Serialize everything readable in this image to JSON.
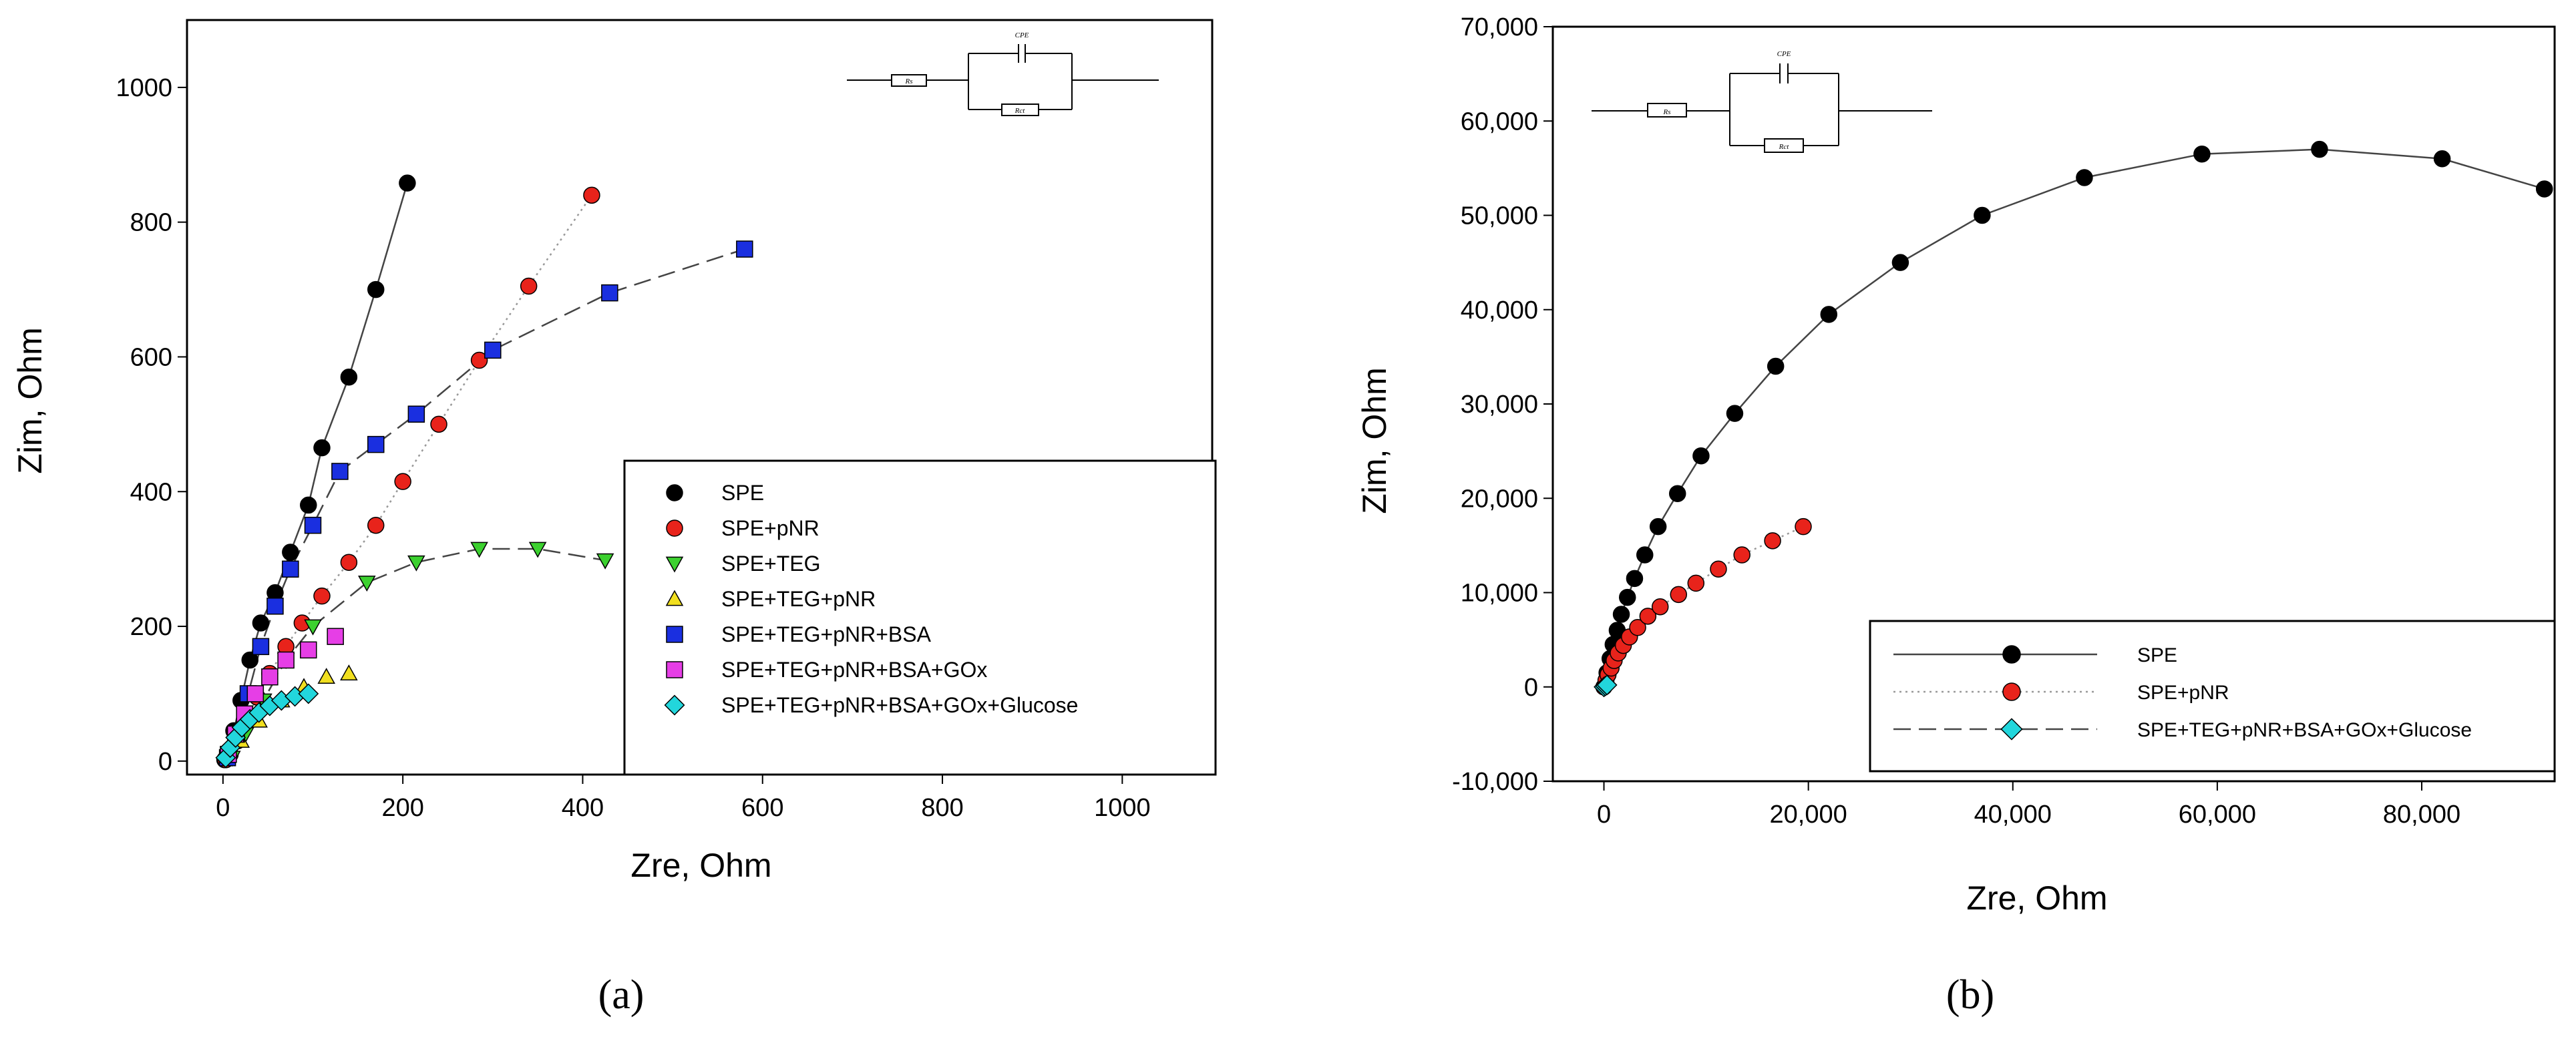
{
  "chart_data": [
    {
      "type": "scatter",
      "panel_label": "(a)",
      "xlabel": "Zre, Ohm",
      "ylabel": "Zim, Ohm",
      "xlim": [
        -40,
        1100
      ],
      "ylim": [
        -20,
        1100
      ],
      "xticks": [
        0,
        200,
        400,
        600,
        800,
        1000
      ],
      "yticks": [
        0,
        200,
        400,
        600,
        800,
        1000
      ],
      "inset_circuit": {
        "cpe_label": "CPE",
        "r1_label": "Rs",
        "r2_label": "Rct"
      },
      "series": [
        {
          "name": "SPE",
          "color": "#000000",
          "marker": "circle",
          "line": "solid",
          "x": [
            2,
            6,
            12,
            20,
            30,
            42,
            58,
            75,
            95,
            110,
            140,
            170,
            205
          ],
          "y": [
            2,
            15,
            45,
            90,
            150,
            205,
            250,
            310,
            380,
            465,
            570,
            700,
            858
          ]
        },
        {
          "name": "SPE+pNR",
          "color": "#e8231b",
          "marker": "circle",
          "line": "dotted",
          "x": [
            3,
            8,
            16,
            26,
            38,
            52,
            70,
            88,
            110,
            140,
            170,
            200,
            240,
            285,
            340,
            410
          ],
          "y": [
            2,
            10,
            30,
            60,
            95,
            130,
            170,
            205,
            245,
            295,
            350,
            415,
            500,
            595,
            705,
            840
          ]
        },
        {
          "name": "SPE+TEG",
          "color": "#3cd12f",
          "marker": "triangle-down",
          "line": "dashed",
          "x": [
            10,
            25,
            45,
            70,
            100,
            160,
            215,
            285,
            350,
            425
          ],
          "y": [
            5,
            40,
            90,
            150,
            200,
            265,
            295,
            315,
            315,
            298
          ]
        },
        {
          "name": "SPE+TEG+pNR",
          "color": "#f1df1f",
          "marker": "triangle-up",
          "line": "none",
          "x": [
            20,
            40,
            65,
            90,
            115,
            140
          ],
          "y": [
            30,
            60,
            90,
            110,
            125,
            130
          ]
        },
        {
          "name": "SPE+TEG+pNR+BSA",
          "color": "#1a2fe0",
          "marker": "square",
          "line": "dashed",
          "x": [
            5,
            15,
            28,
            42,
            58,
            75,
            100,
            130,
            170,
            215,
            300,
            430,
            580
          ],
          "y": [
            5,
            40,
            100,
            170,
            230,
            285,
            350,
            430,
            470,
            515,
            610,
            695,
            760
          ]
        },
        {
          "name": "SPE+TEG+pNR+BSA+GOx",
          "color": "#e63ee6",
          "marker": "square",
          "line": "none",
          "x": [
            6,
            14,
            24,
            36,
            52,
            70,
            95,
            125
          ],
          "y": [
            10,
            40,
            70,
            100,
            125,
            150,
            165,
            185
          ]
        },
        {
          "name": "SPE+TEG+pNR+BSA+GOx+Glucose",
          "color": "#22d6dc",
          "marker": "diamond",
          "line": "none",
          "x": [
            3,
            8,
            14,
            21,
            30,
            40,
            52,
            65,
            80,
            95
          ],
          "y": [
            5,
            20,
            35,
            50,
            62,
            72,
            82,
            90,
            96,
            100
          ]
        }
      ]
    },
    {
      "type": "scatter",
      "panel_label": "(b)",
      "xlabel": "Zre,  Ohm",
      "ylabel": "Zim,  Ohm",
      "xlim": [
        -5000,
        93000
      ],
      "ylim": [
        -10000,
        70000
      ],
      "xticks": [
        0,
        20000,
        40000,
        60000,
        80000
      ],
      "xtick_labels": [
        "0",
        "20,000",
        "40,000",
        "60,000",
        "80,000"
      ],
      "yticks": [
        -10000,
        0,
        10000,
        20000,
        30000,
        40000,
        50000,
        60000,
        70000
      ],
      "ytick_labels": [
        "-10,000",
        "0",
        "10,000",
        "20,000",
        "30,000",
        "40,000",
        "50,000",
        "60,000",
        "70,000"
      ],
      "inset_circuit": {
        "cpe_label": "CPE",
        "r1_label": "Rs",
        "r2_label": "Rct"
      },
      "series": [
        {
          "name": "SPE",
          "color": "#000000",
          "marker": "circle",
          "line": "solid",
          "x": [
            0,
            300,
            600,
            900,
            1300,
            1700,
            2300,
            3000,
            4000,
            5300,
            7200,
            9500,
            12800,
            16800,
            22000,
            29000,
            37000,
            47000,
            58500,
            70000,
            82000,
            92000
          ],
          "y": [
            0,
            1500,
            3000,
            4500,
            6000,
            7700,
            9500,
            11500,
            14000,
            17000,
            20500,
            24500,
            29000,
            34000,
            39500,
            45000,
            50000,
            54000,
            56500,
            57000,
            56000,
            52800
          ]
        },
        {
          "name": "SPE+pNR",
          "color": "#e8231b",
          "marker": "circle",
          "line": "dotted",
          "x": [
            0,
            200,
            400,
            700,
            1000,
            1400,
            1900,
            2500,
            3300,
            4300,
            5500,
            7300,
            9000,
            11200,
            13500,
            16500,
            19500
          ],
          "y": [
            0,
            700,
            1300,
            2000,
            2800,
            3600,
            4400,
            5300,
            6300,
            7500,
            8500,
            9800,
            11000,
            12500,
            14000,
            15500,
            17000
          ]
        },
        {
          "name": "SPE+TEG+pNR+BSA+GOx+Glucose",
          "color": "#22d6dc",
          "marker": "diamond",
          "line": "dashed",
          "x": [
            0,
            150,
            300
          ],
          "y": [
            0,
            100,
            200
          ]
        }
      ]
    }
  ]
}
